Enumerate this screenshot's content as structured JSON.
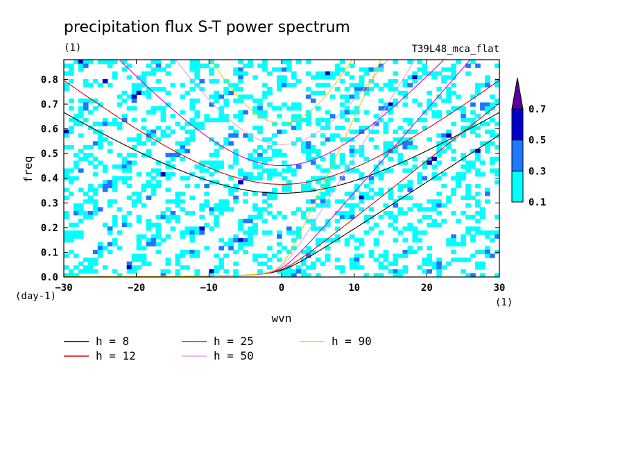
{
  "chart_data": {
    "type": "heatmap",
    "title": "precipitation flux S-T power spectrum",
    "subtitle": "T39L48_mca_flat",
    "unit_label": "(1)",
    "xlabel": "wvn",
    "ylabel": "freq",
    "x_unit": "(1)",
    "y_unit": "(day-1)",
    "xlim": [
      -30,
      30
    ],
    "ylim": [
      0,
      0.88
    ],
    "x_ticks": [
      -30,
      -20,
      -10,
      0,
      10,
      20,
      30
    ],
    "x_tick_labels": [
      "−30",
      "−20",
      "−10",
      "0",
      "10",
      "20",
      "30"
    ],
    "y_ticks": [
      0,
      0.1,
      0.2,
      0.3,
      0.4,
      0.5,
      0.6,
      0.7,
      0.8
    ],
    "y_tick_labels": [
      "0.0",
      "0.1",
      "0.2",
      "0.3",
      "0.4",
      "0.5",
      "0.6",
      "0.7",
      "0.8"
    ],
    "contour_levels": [
      0.1,
      0.3,
      0.5,
      0.7
    ],
    "colorbar_labels": [
      "0.1",
      "0.3",
      "0.5",
      "0.7"
    ],
    "colorbar_colors": [
      "#00ffff",
      "#1e78ff",
      "#0000c8",
      "#5a00a0"
    ],
    "dispersion_curves": [
      {
        "name": "h =  8",
        "h": 8,
        "color": "#000000"
      },
      {
        "name": "h = 12",
        "h": 12,
        "color": "#e00000"
      },
      {
        "name": "h = 25",
        "h": 25,
        "color": "#d000c8"
      },
      {
        "name": "h = 50",
        "h": 50,
        "color": "#e8a0e8"
      },
      {
        "name": "h = 90",
        "h": 90,
        "color": "#f0c800"
      }
    ]
  }
}
